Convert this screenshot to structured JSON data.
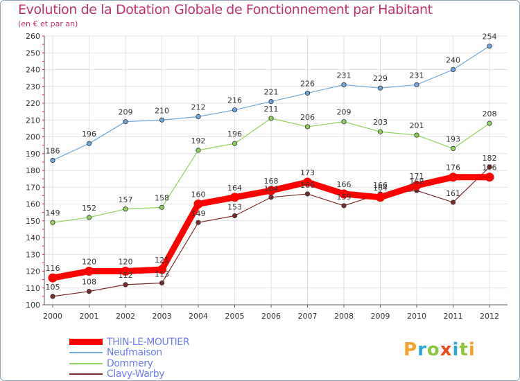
{
  "header": {
    "title": "Evolution de la Dotation Globale de Fonctionnement par Habitant",
    "subtitle": "(en € et par an)"
  },
  "brand": {
    "letters": [
      "P",
      "r",
      "o",
      "x",
      "i",
      "t",
      "i"
    ],
    "colors": [
      "#f2a12b",
      "#2da6d8",
      "#8cc63f",
      "#e94e1b",
      "#2da6d8",
      "#8cc63f",
      "#f2a12b"
    ]
  },
  "chart_data": {
    "type": "line",
    "title": "Evolution de la Dotation Globale de Fonctionnement par Habitant",
    "subtitle": "(en € et par an)",
    "xlabel": "",
    "ylabel": "",
    "x": [
      2000,
      2001,
      2002,
      2003,
      2004,
      2005,
      2006,
      2007,
      2008,
      2009,
      2010,
      2011,
      2012
    ],
    "ylim": [
      100,
      260
    ],
    "yticks": [
      100,
      110,
      120,
      130,
      140,
      150,
      160,
      170,
      180,
      190,
      200,
      210,
      220,
      230,
      240,
      250,
      260
    ],
    "grid": true,
    "legend_position": "bottom-left",
    "series": [
      {
        "name": "THIN-LE-MOUTIER",
        "color": "#ff0000",
        "emphasis": true,
        "values": [
          116,
          120,
          120,
          121,
          160,
          164,
          168,
          173,
          166,
          164,
          171,
          176,
          176
        ]
      },
      {
        "name": "Neufmaison",
        "color": "#6fa8dc",
        "values": [
          186,
          196,
          209,
          210,
          212,
          216,
          221,
          226,
          231,
          229,
          231,
          240,
          254
        ]
      },
      {
        "name": "Dommery",
        "color": "#8ed15a",
        "values": [
          149,
          152,
          157,
          158,
          192,
          196,
          211,
          206,
          209,
          203,
          201,
          193,
          208
        ]
      },
      {
        "name": "Clavy-Warby",
        "color": "#7b2a2a",
        "values": [
          105,
          108,
          112,
          113,
          149,
          153,
          164,
          166,
          159,
          166,
          168,
          161,
          182
        ]
      }
    ]
  }
}
